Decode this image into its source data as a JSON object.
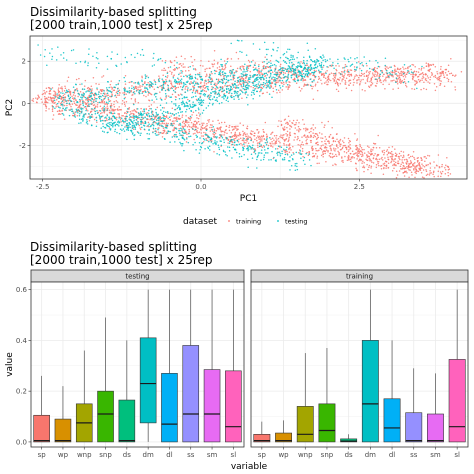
{
  "chart_data": [
    {
      "type": "scatter",
      "title": [
        "Dissimilarity-based splitting",
        "[2000 train,1000 test] x 25rep"
      ],
      "xlabel": "PC1",
      "ylabel": "PC2",
      "xlim": [
        -2.7,
        4.2
      ],
      "ylim": [
        -3.6,
        3.2
      ],
      "x_ticks": [
        -2.5,
        0.0,
        2.5
      ],
      "x_tick_labels": [
        "-2.5",
        "0.0",
        "2.5"
      ],
      "y_ticks": [
        2,
        0,
        -2
      ],
      "y_tick_labels": [
        "2",
        "0",
        "-2"
      ],
      "grid": true,
      "legend": {
        "title": "dataset",
        "placement": "bottom",
        "entries": [
          {
            "label": "training",
            "color": "#F8766D"
          },
          {
            "label": "testing",
            "color": "#00BFC4"
          }
        ]
      },
      "series": [
        {
          "name": "training",
          "color": "#F8766D",
          "clusters": [
            {
              "x": [
                -2.5,
                3.9
              ],
              "y": [
                0.4,
                1.5
              ],
              "n": 900
            },
            {
              "x": [
                -2.4,
                3.5
              ],
              "y": [
                0.3,
                -3.2
              ],
              "n": 900
            },
            {
              "x": [
                -0.6,
                4.0
              ],
              "y": [
                1.7,
                1.2
              ],
              "n": 400
            },
            {
              "x": [
                1.2,
                3.9
              ],
              "y": [
                -1.0,
                -3.3
              ],
              "n": 350
            },
            {
              "x": [
                -2.6,
                1.0
              ],
              "y": [
                0.1,
                -1.8
              ],
              "n": 300
            }
          ]
        },
        {
          "name": "testing",
          "color": "#00BFC4",
          "clusters": [
            {
              "x": [
                -2.3,
                2.0
              ],
              "y": [
                0.2,
                1.9
              ],
              "n": 500
            },
            {
              "x": [
                -2.2,
                1.6
              ],
              "y": [
                -0.3,
                -2.7
              ],
              "n": 450
            },
            {
              "x": [
                -1.5,
                1.8
              ],
              "y": [
                -1.2,
                1.7
              ],
              "n": 600
            },
            {
              "x": [
                0.5,
                3.4
              ],
              "y": [
                2.9,
                1.3
              ],
              "n": 120
            },
            {
              "x": [
                -2.5,
                -0.5
              ],
              "y": [
                2.3,
                2.0
              ],
              "n": 60
            }
          ]
        }
      ]
    },
    {
      "type": "box",
      "title": [
        "Dissimilarity-based splitting",
        "[2000 train,1000 test] x 25rep"
      ],
      "xlabel": "variable",
      "ylabel": "value",
      "ylim": [
        -0.02,
        0.63
      ],
      "y_ticks": [
        0.0,
        0.2,
        0.4,
        0.6
      ],
      "y_tick_labels": [
        "0.0",
        "0.2",
        "0.4",
        "0.6"
      ],
      "categories": [
        "sp",
        "wp",
        "wnp",
        "snp",
        "ds",
        "dm",
        "dl",
        "ss",
        "sm",
        "sl"
      ],
      "colors": [
        "#F8766D",
        "#D89000",
        "#A3A500",
        "#39B600",
        "#00BF7D",
        "#00BFC4",
        "#00B0F6",
        "#9590FF",
        "#E76BF3",
        "#FF62BC"
      ],
      "panels": [
        {
          "strip": "testing",
          "boxes": [
            {
              "whislo": 0.0,
              "q1": 0.0,
              "med": 0.005,
              "q3": 0.105,
              "whishi": 0.26
            },
            {
              "whislo": 0.0,
              "q1": 0.0,
              "med": 0.005,
              "q3": 0.09,
              "whishi": 0.22
            },
            {
              "whislo": 0.0,
              "q1": 0.0,
              "med": 0.075,
              "q3": 0.15,
              "whishi": 0.36
            },
            {
              "whislo": 0.0,
              "q1": 0.0,
              "med": 0.11,
              "q3": 0.2,
              "whishi": 0.49
            },
            {
              "whislo": 0.0,
              "q1": 0.0,
              "med": 0.005,
              "q3": 0.165,
              "whishi": 0.4
            },
            {
              "whislo": 0.0,
              "q1": 0.075,
              "med": 0.23,
              "q3": 0.41,
              "whishi": 0.6
            },
            {
              "whislo": 0.0,
              "q1": 0.0,
              "med": 0.07,
              "q3": 0.27,
              "whishi": 0.6
            },
            {
              "whislo": 0.0,
              "q1": 0.0,
              "med": 0.11,
              "q3": 0.38,
              "whishi": 0.6
            },
            {
              "whislo": 0.0,
              "q1": 0.0,
              "med": 0.11,
              "q3": 0.285,
              "whishi": 0.6
            },
            {
              "whislo": 0.0,
              "q1": 0.0,
              "med": 0.06,
              "q3": 0.28,
              "whishi": 0.6
            }
          ]
        },
        {
          "strip": "training",
          "boxes": [
            {
              "whislo": 0.0,
              "q1": 0.0,
              "med": 0.005,
              "q3": 0.03,
              "whishi": 0.08
            },
            {
              "whislo": 0.0,
              "q1": 0.0,
              "med": 0.005,
              "q3": 0.035,
              "whishi": 0.085
            },
            {
              "whislo": 0.0,
              "q1": 0.0,
              "med": 0.03,
              "q3": 0.14,
              "whishi": 0.35
            },
            {
              "whislo": 0.0,
              "q1": 0.0,
              "med": 0.045,
              "q3": 0.15,
              "whishi": 0.37
            },
            {
              "whislo": 0.0,
              "q1": 0.0,
              "med": 0.003,
              "q3": 0.012,
              "whishi": 0.03
            },
            {
              "whislo": 0.0,
              "q1": 0.0,
              "med": 0.15,
              "q3": 0.4,
              "whishi": 0.6
            },
            {
              "whislo": 0.0,
              "q1": 0.0,
              "med": 0.055,
              "q3": 0.17,
              "whishi": 0.4
            },
            {
              "whislo": 0.0,
              "q1": 0.0,
              "med": 0.005,
              "q3": 0.115,
              "whishi": 0.29
            },
            {
              "whislo": 0.0,
              "q1": 0.0,
              "med": 0.005,
              "q3": 0.11,
              "whishi": 0.27
            },
            {
              "whislo": 0.0,
              "q1": 0.0,
              "med": 0.06,
              "q3": 0.325,
              "whishi": 0.6
            }
          ]
        }
      ]
    }
  ]
}
